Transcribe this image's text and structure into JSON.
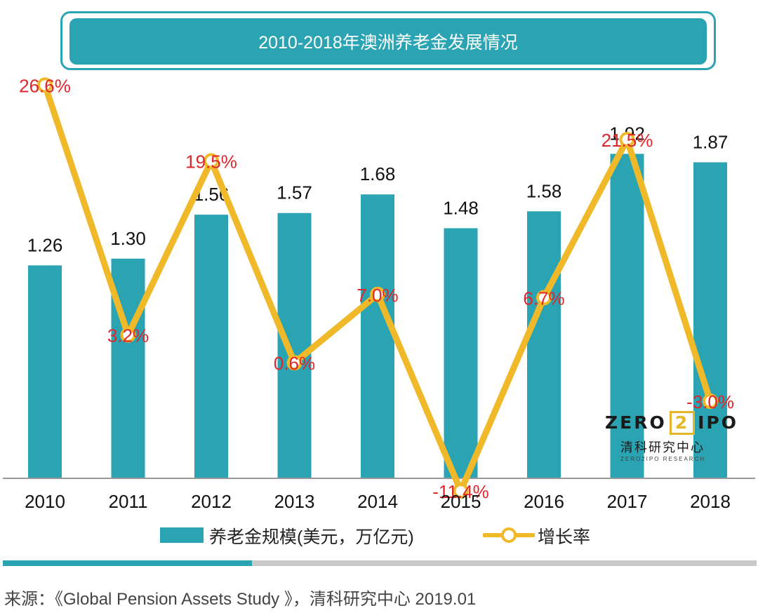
{
  "chart_data": {
    "type": "bar",
    "title": "2010-2018年澳洲养老金发展情况",
    "categories": [
      "2010",
      "2011",
      "2012",
      "2013",
      "2014",
      "2015",
      "2016",
      "2017",
      "2018"
    ],
    "series": [
      {
        "name": "养老金规模(美元，万亿元)",
        "type": "bar",
        "values": [
          1.26,
          1.3,
          1.56,
          1.57,
          1.68,
          1.48,
          1.58,
          1.92,
          1.87
        ],
        "labels": [
          "1.26",
          "1.30",
          "1.56",
          "1.57",
          "1.68",
          "1.48",
          "1.58",
          "1.92",
          "1.87"
        ]
      },
      {
        "name": "增长率",
        "type": "line",
        "values": [
          26.6,
          3.2,
          19.5,
          0.6,
          7.0,
          -11.4,
          6.7,
          21.5,
          -3.0
        ],
        "labels": [
          "26.6%",
          "3.2%",
          "19.5%",
          "0.6%",
          "7.0%",
          "-11.4%",
          "6.7%",
          "21.5%",
          "-3.0%"
        ]
      }
    ],
    "bar_ylim": [
      0,
      2.1
    ],
    "line_ylim": [
      -16,
      28
    ],
    "grid": false,
    "legend": "bottom"
  },
  "colors": {
    "bar": "#2aa3b2",
    "line": "#f0b929",
    "line_label": "#e0262b",
    "bar_label": "#111111",
    "axis": "#999999"
  },
  "logo": {
    "left": "ZERO",
    "box": "2",
    "right": "IPO",
    "cn": "清科研究中心",
    "en": "ZERO2IPO RESEARCH"
  },
  "source": "来源：《Global Pension Assets Study 》，清科研究中心  2019.01"
}
